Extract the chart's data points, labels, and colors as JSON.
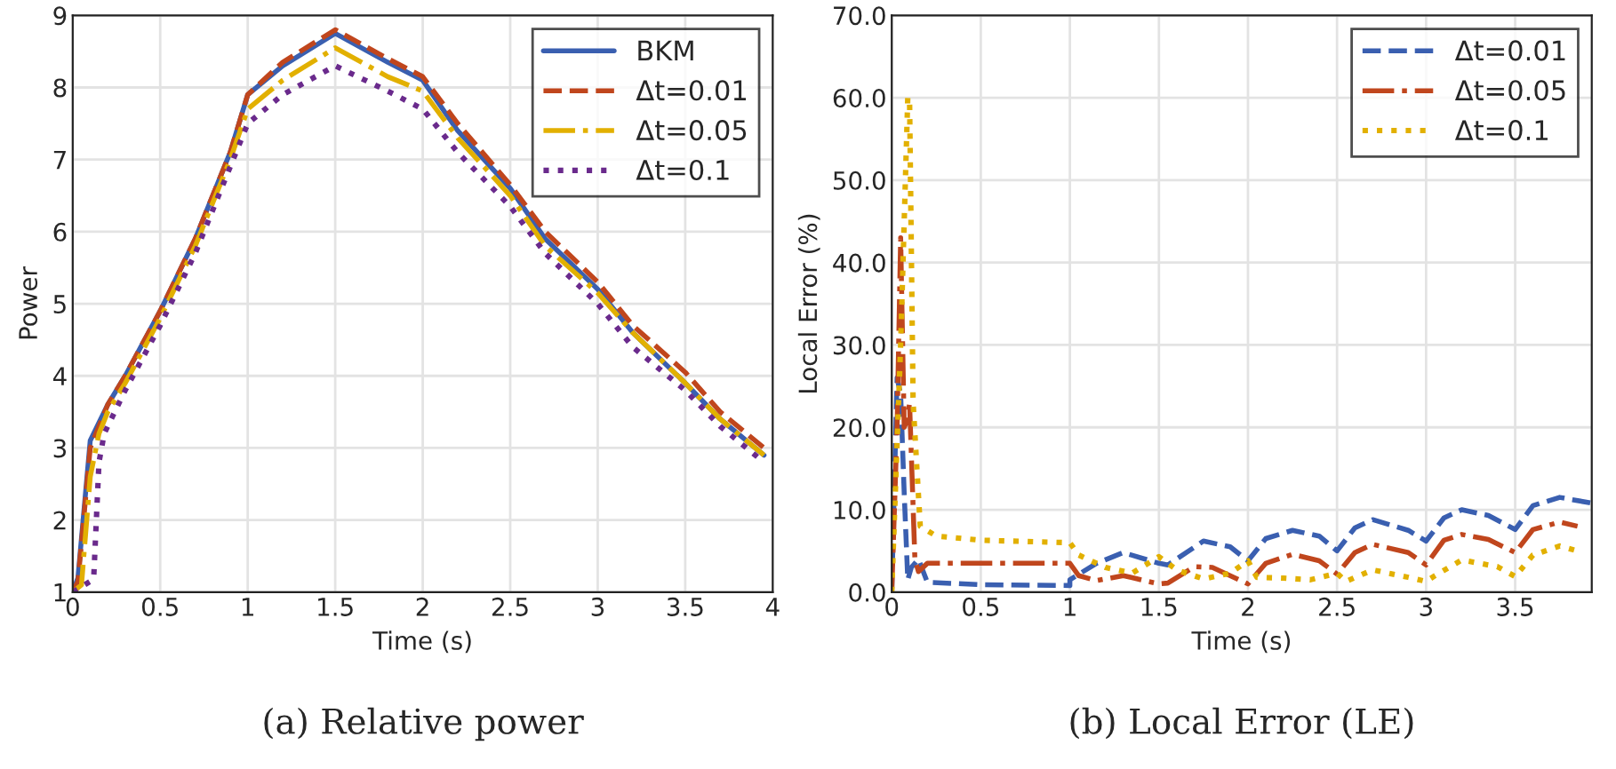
{
  "chart_data": [
    {
      "type": "line",
      "xlabel": "Time (s)",
      "ylabel": "Power",
      "annotations": [
        "(a) Relative power"
      ],
      "xlim": [
        0,
        4
      ],
      "xticks": [
        0,
        0.5,
        1,
        1.5,
        2,
        2.5,
        3,
        3.5,
        4
      ],
      "ylim": [
        1,
        9
      ],
      "yticks": [
        1,
        2,
        3,
        4,
        5,
        6,
        7,
        8,
        9
      ],
      "grid": true,
      "legend": "top right",
      "series": [
        {
          "name": "BKM",
          "color": "#3a5fb0",
          "line_style": "solid",
          "x": [
            0,
            0.03,
            0.1,
            0.2,
            0.3,
            0.5,
            0.7,
            0.9,
            1.0,
            1.2,
            1.5,
            1.8,
            2.0,
            2.2,
            2.5,
            2.7,
            3.0,
            3.2,
            3.5,
            3.7,
            3.95
          ],
          "values": [
            1,
            1.2,
            3.1,
            3.6,
            4.0,
            4.9,
            5.9,
            7.1,
            7.9,
            8.3,
            8.75,
            8.35,
            8.1,
            7.4,
            6.6,
            5.9,
            5.2,
            4.6,
            3.9,
            3.4,
            2.9
          ]
        },
        {
          "name": "Δt=0.01",
          "color": "#c0461d",
          "line_style": "dashed",
          "x": [
            0,
            0.03,
            0.1,
            0.2,
            0.3,
            0.5,
            0.7,
            0.9,
            1.0,
            1.2,
            1.5,
            1.8,
            2.0,
            2.2,
            2.5,
            2.7,
            3.0,
            3.2,
            3.5,
            3.7,
            3.95
          ],
          "values": [
            1,
            1.15,
            3.0,
            3.6,
            4.0,
            4.9,
            5.9,
            7.1,
            7.9,
            8.35,
            8.8,
            8.4,
            8.15,
            7.5,
            6.65,
            6.0,
            5.3,
            4.7,
            4.05,
            3.5,
            3.0
          ]
        },
        {
          "name": "Δt=0.05",
          "color": "#e2b000",
          "line_style": "dashdot",
          "x": [
            0,
            0.05,
            0.1,
            0.15,
            0.2,
            0.3,
            0.5,
            0.7,
            0.9,
            1.0,
            1.2,
            1.5,
            1.8,
            2.0,
            2.2,
            2.5,
            2.7,
            3.0,
            3.2,
            3.5,
            3.7,
            3.95
          ],
          "values": [
            1,
            1.1,
            2.6,
            3.2,
            3.5,
            3.9,
            4.8,
            5.8,
            7.0,
            7.7,
            8.1,
            8.55,
            8.15,
            7.95,
            7.3,
            6.5,
            5.8,
            5.15,
            4.6,
            3.9,
            3.4,
            2.9
          ]
        },
        {
          "name": "Δt=0.1",
          "color": "#6a2a8c",
          "line_style": "dotted",
          "x": [
            0,
            0.1,
            0.12,
            0.15,
            0.18,
            0.3,
            0.5,
            0.7,
            0.9,
            1.0,
            1.2,
            1.5,
            1.8,
            2.0,
            2.2,
            2.5,
            2.7,
            3.0,
            3.2,
            3.5,
            3.7,
            3.95
          ],
          "values": [
            1,
            1.15,
            1.2,
            2.8,
            3.2,
            3.8,
            4.7,
            5.7,
            6.9,
            7.5,
            7.9,
            8.3,
            7.95,
            7.7,
            7.1,
            6.35,
            5.7,
            5.0,
            4.4,
            3.8,
            3.3,
            2.8
          ]
        }
      ]
    },
    {
      "type": "line",
      "xlabel": "Time (s)",
      "ylabel": "Local Error (%)",
      "annotations": [
        "(b) Local Error (LE)"
      ],
      "xlim": [
        0,
        3.93
      ],
      "xticks": [
        0,
        0.5,
        1,
        1.5,
        2,
        2.5,
        3,
        3.5
      ],
      "ylim": [
        0,
        70
      ],
      "yticks": [
        {
          "value": 0,
          "label": "0.0"
        },
        {
          "value": 10,
          "label": "10.0"
        },
        {
          "value": 20,
          "label": "20.0"
        },
        {
          "value": 30,
          "label": "30.0"
        },
        {
          "value": 40,
          "label": "40.0"
        },
        {
          "value": 50,
          "label": "50.0"
        },
        {
          "value": 60,
          "label": "60.0"
        },
        {
          "value": 70,
          "label": "70.0"
        }
      ],
      "grid": true,
      "legend": "top right",
      "series": [
        {
          "name": "Δt=0.01",
          "color": "#3a5fb0",
          "line_style": "dashed",
          "x": [
            0,
            0.03,
            0.05,
            0.07,
            0.09,
            0.11,
            0.15,
            0.2,
            0.5,
            1.0,
            1.0,
            1.15,
            1.3,
            1.5,
            1.55,
            1.75,
            1.9,
            2.0,
            2.1,
            2.25,
            2.4,
            2.5,
            2.6,
            2.7,
            2.9,
            3.0,
            3.1,
            3.2,
            3.35,
            3.5,
            3.6,
            3.75,
            3.93
          ],
          "values": [
            0,
            26,
            24,
            12,
            1.5,
            3,
            4,
            1.2,
            0.9,
            0.8,
            1.5,
            3.5,
            4.8,
            3.5,
            3.3,
            6.2,
            5.5,
            3.8,
            6.5,
            7.5,
            6.8,
            5.0,
            7.8,
            8.8,
            7.5,
            6.2,
            9,
            10,
            9.3,
            7.6,
            10.5,
            11.5,
            10.8
          ]
        },
        {
          "name": "Δt=0.05",
          "color": "#c0461d",
          "line_style": "dashdot",
          "x": [
            0,
            0.03,
            0.05,
            0.07,
            0.09,
            0.1,
            0.13,
            0.15,
            0.2,
            1.0,
            1.05,
            1.15,
            1.3,
            1.5,
            1.55,
            1.7,
            1.8,
            2.0,
            2.1,
            2.25,
            2.4,
            2.5,
            2.6,
            2.7,
            2.9,
            3.0,
            3.1,
            3.2,
            3.35,
            3.5,
            3.6,
            3.75,
            3.85
          ],
          "values": [
            0,
            20,
            43,
            20,
            21,
            23,
            4,
            2.5,
            3.5,
            3.5,
            2,
            1.4,
            2,
            1,
            1.1,
            3.1,
            3,
            1,
            3.5,
            4.6,
            3.8,
            2.2,
            4.8,
            5.8,
            4.8,
            3.3,
            6.3,
            7,
            6.4,
            4.8,
            7.6,
            8.5,
            8.0
          ]
        },
        {
          "name": "Δt=0.1",
          "color": "#e2b000",
          "line_style": "dotted",
          "x": [
            0,
            0.05,
            0.09,
            0.1,
            0.12,
            0.16,
            0.25,
            0.5,
            1.0,
            1.05,
            1.2,
            1.35,
            1.5,
            1.6,
            1.75,
            1.9,
            2.0,
            2.05,
            2.2,
            2.35,
            2.5,
            2.55,
            2.7,
            2.9,
            3.0,
            3.05,
            3.2,
            3.4,
            3.5,
            3.6,
            3.75,
            3.85
          ],
          "values": [
            0,
            30,
            60,
            60,
            23,
            8,
            6.8,
            6.3,
            6.0,
            4.5,
            3,
            2.3,
            4.3,
            2.7,
            1.6,
            2.3,
            3.8,
            1.8,
            1.7,
            1.5,
            2.3,
            1.3,
            2.7,
            1.8,
            1.3,
            2,
            3.9,
            3.1,
            1.9,
            4.5,
            5.6,
            5.0
          ]
        }
      ]
    }
  ]
}
